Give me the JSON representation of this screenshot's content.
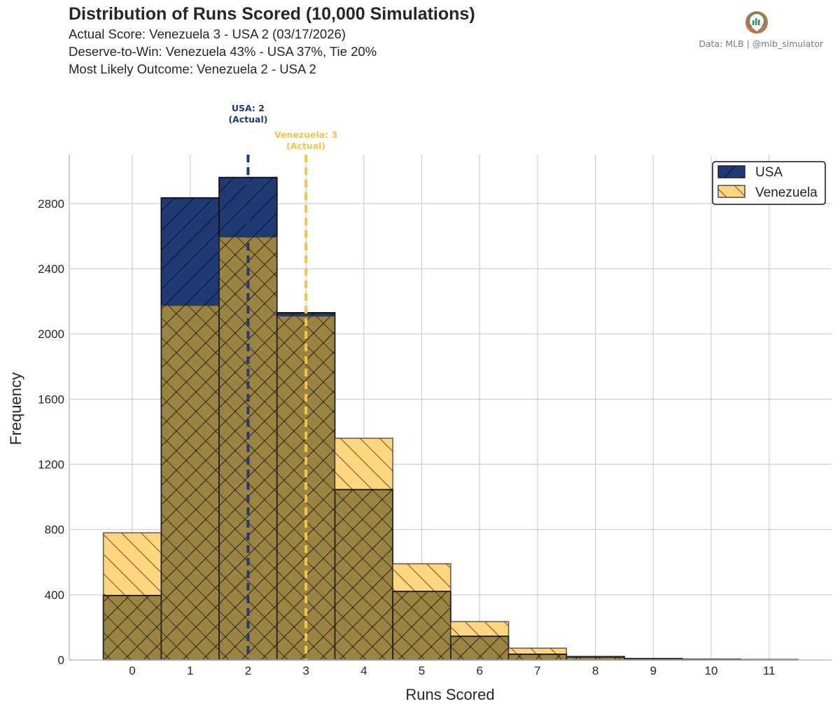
{
  "header": {
    "title": "Distribution of Runs Scored (10,000 Simulations)",
    "line1": "Actual Score: Venezuela 3 - USA 2  (03/17/2026)",
    "line2": "Deserve-to-Win: Venezuela 43% - USA 37%, Tie 20%",
    "line3": "Most Likely Outcome: Venezuela 2 - USA 2"
  },
  "credit": "Data: MLB  |  @mlb_simulator",
  "chart_data": {
    "type": "bar",
    "categories": [
      "0",
      "1",
      "2",
      "3",
      "4",
      "5",
      "6",
      "7",
      "8",
      "9",
      "10",
      "11"
    ],
    "series": [
      {
        "name": "USA",
        "values": [
          395,
          2835,
          2960,
          2130,
          1045,
          420,
          145,
          35,
          18,
          8,
          4,
          2
        ],
        "color": "#1f3a74"
      },
      {
        "name": "Venezuela",
        "values": [
          780,
          2175,
          2595,
          2110,
          1360,
          590,
          235,
          72,
          22,
          8,
          3,
          1
        ],
        "color": "#ffd57e"
      }
    ],
    "overlay_color": "#9b8441",
    "xlabel": "Runs Scored",
    "ylabel": "Frequency",
    "ylim": [
      0,
      3100
    ],
    "yticks": [
      0,
      400,
      800,
      1200,
      1600,
      2000,
      2400,
      2800
    ],
    "grid": true,
    "legend": "top-right",
    "reference_lines": [
      {
        "series": "USA",
        "x": 2,
        "label1": "USA: 2",
        "label2": "(Actual)",
        "color": "#1f3a74"
      },
      {
        "series": "Venezuela",
        "x": 3,
        "label1": "Venezuela: 3",
        "label2": "(Actual)",
        "color": "#f5c443"
      }
    ]
  }
}
